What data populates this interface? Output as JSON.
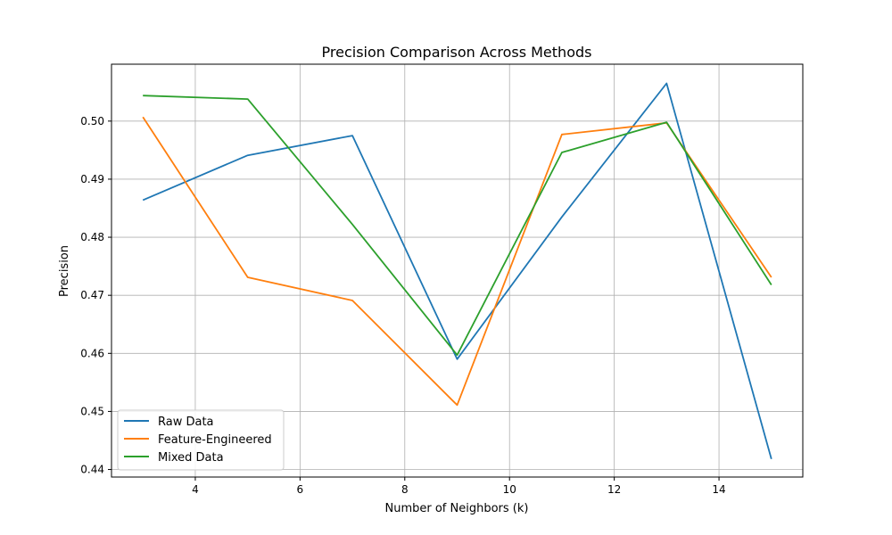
{
  "chart_data": {
    "type": "line",
    "title": "Precision Comparison Across Methods",
    "xlabel": "Number of Neighbors (k)",
    "ylabel": "Precision",
    "x": [
      3,
      5,
      7,
      9,
      11,
      13,
      15
    ],
    "xlim": [
      2.4,
      15.6
    ],
    "ylim": [
      0.4387,
      0.5098
    ],
    "xticks": [
      4,
      6,
      8,
      10,
      12,
      14
    ],
    "yticks": [
      0.44,
      0.45,
      0.46,
      0.47,
      0.48,
      0.49,
      0.5
    ],
    "ytick_labels": [
      "0.44",
      "0.45",
      "0.46",
      "0.47",
      "0.48",
      "0.49",
      "0.50"
    ],
    "grid": true,
    "legend_position": "lower-left",
    "series": [
      {
        "name": "Raw Data",
        "color": "#1f77b4",
        "values": [
          0.4864,
          0.4941,
          0.4975,
          0.459,
          0.4835,
          0.5065,
          0.4418
        ]
      },
      {
        "name": "Feature-Engineered",
        "color": "#ff7f0e",
        "values": [
          0.5007,
          0.4731,
          0.4691,
          0.4511,
          0.4977,
          0.4997,
          0.4731
        ]
      },
      {
        "name": "Mixed Data",
        "color": "#2ca02c",
        "values": [
          0.5044,
          0.5038,
          0.4822,
          0.4597,
          0.4946,
          0.4998,
          0.4718
        ]
      }
    ]
  }
}
